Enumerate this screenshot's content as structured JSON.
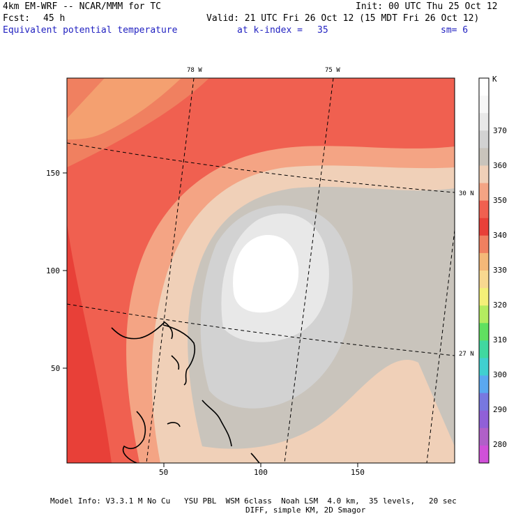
{
  "header": {
    "model": "4km EM-WRF -- NCAR/MMM for TC",
    "init": "Init: 00 UTC Thu 25 Oct 12",
    "fcst_label": "Fcst:",
    "fcst_value": "45 h",
    "valid": "Valid: 21 UTC Fri 26 Oct 12 (15 MDT Fri 26 Oct 12)",
    "field": "Equivalent potential temperature",
    "kindex_label": "at k-index =",
    "kindex_value": "35",
    "sm": "sm= 6"
  },
  "map": {
    "lon_labels": [
      "78 W",
      "75 W"
    ],
    "lat_labels": [
      "30 N",
      "27 N"
    ],
    "x_ticks": [
      "50",
      "100",
      "150"
    ],
    "y_ticks": [
      "150",
      "100",
      "50"
    ]
  },
  "colorbar": {
    "unit": "K",
    "levels": [
      "370",
      "360",
      "350",
      "340",
      "330",
      "320",
      "310",
      "300",
      "290",
      "280"
    ],
    "colors": [
      "#ffffff",
      "#f7f7f7",
      "#e8e8e8",
      "#d2d2d2",
      "#c9c4bc",
      "#f0d0b8",
      "#f4a484",
      "#f06050",
      "#e84038",
      "#f08060",
      "#f4b878",
      "#f8d890",
      "#f4f078",
      "#b4ec60",
      "#60e060",
      "#40d8a0",
      "#40d0d0",
      "#5aa8f0",
      "#7878e0",
      "#9060d8",
      "#b060c8",
      "#d050d8"
    ]
  },
  "footer": {
    "line1": "Model Info: V3.3.1 M No Cu   YSU PBL  WSM 6class  Noah LSM  4.0 km,  35 levels,   20 sec",
    "line2": "DIFF, simple KM, 2D Smagor"
  }
}
